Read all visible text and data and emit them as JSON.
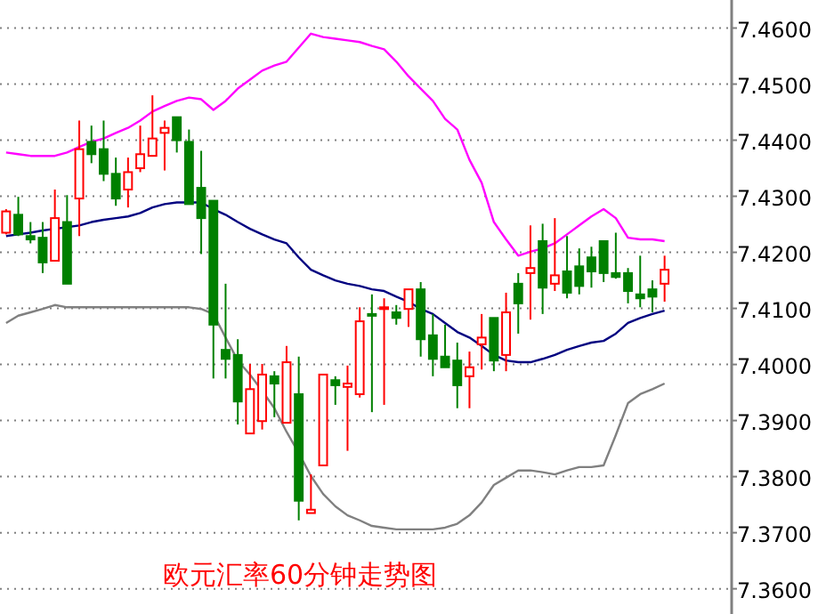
{
  "chart_data": {
    "type": "candlestick",
    "title": "欧元汇率60分钟走势图",
    "categories": [
      null,
      null,
      null,
      null,
      null,
      null,
      null,
      null,
      null,
      null,
      null,
      null,
      null,
      null,
      null,
      null,
      null,
      null,
      null,
      null,
      null,
      null,
      null,
      null,
      null,
      null,
      null,
      null,
      null,
      null,
      null,
      null,
      null,
      null,
      null,
      null,
      null,
      null,
      null,
      null,
      null,
      null,
      null,
      null,
      null,
      null,
      null,
      null,
      null,
      null,
      null,
      null,
      null,
      null,
      null
    ],
    "ohlc": [
      [
        7.4235,
        7.4277,
        7.4232,
        7.4273
      ],
      [
        7.4267,
        7.4299,
        7.4229,
        7.4232
      ],
      [
        7.4229,
        7.4254,
        7.4216,
        7.4223
      ],
      [
        7.4226,
        7.4254,
        7.4163,
        7.4182
      ],
      [
        7.4185,
        7.4312,
        7.4185,
        7.4261
      ],
      [
        7.4254,
        7.4302,
        7.4144,
        7.4144
      ],
      [
        7.4296,
        7.4435,
        7.4229,
        7.4384
      ],
      [
        7.4397,
        7.4426,
        7.4359,
        7.4375
      ],
      [
        7.4384,
        7.4435,
        7.4327,
        7.434
      ],
      [
        7.434,
        7.4369,
        7.4283,
        7.4296
      ],
      [
        7.4312,
        7.4369,
        7.428,
        7.4343
      ],
      [
        7.435,
        7.4426,
        7.4343,
        7.4375
      ],
      [
        7.4372,
        7.448,
        7.4372,
        7.4403
      ],
      [
        7.4413,
        7.4435,
        7.4346,
        7.4422
      ],
      [
        7.4441,
        7.4441,
        7.4378,
        7.44
      ],
      [
        7.4397,
        7.4419,
        7.4286,
        7.4286
      ],
      [
        7.4315,
        7.4381,
        7.4197,
        7.4261
      ],
      [
        7.4292,
        7.4292,
        7.3975,
        7.4071
      ],
      [
        7.4026,
        7.4144,
        7.3975,
        7.401
      ],
      [
        7.4017,
        7.4045,
        7.3893,
        7.3934
      ],
      [
        7.3877,
        7.4001,
        7.3877,
        7.3956
      ],
      [
        7.3899,
        7.4001,
        7.3884,
        7.3982
      ],
      [
        7.3979,
        7.3988,
        7.3906,
        7.3966
      ],
      [
        7.3896,
        7.4033,
        7.3896,
        7.4004
      ],
      [
        7.3947,
        7.4014,
        7.3722,
        7.3757
      ],
      [
        7.3735,
        7.3804,
        7.3735,
        7.3741
      ],
      [
        7.382,
        7.3982,
        7.382,
        7.3982
      ],
      [
        7.3972,
        7.3979,
        7.3928,
        7.3963
      ],
      [
        7.396,
        7.3998,
        7.3846,
        7.3966
      ],
      [
        7.3947,
        7.4102,
        7.3941,
        7.4077
      ],
      [
        7.409,
        7.4125,
        7.3915,
        7.4087
      ],
      [
        7.4099,
        7.4118,
        7.3928,
        7.4102
      ],
      [
        7.4093,
        7.4106,
        7.4071,
        7.4083
      ],
      [
        7.4099,
        7.4134,
        7.4067,
        7.4134
      ],
      [
        7.4134,
        7.4147,
        7.4014,
        7.4045
      ],
      [
        7.4052,
        7.409,
        7.3979,
        7.401
      ],
      [
        7.4014,
        7.4071,
        7.3995,
        7.3995
      ],
      [
        7.4007,
        7.4039,
        7.3922,
        7.3963
      ],
      [
        7.3979,
        7.4023,
        7.3922,
        7.3995
      ],
      [
        7.4036,
        7.409,
        7.3991,
        7.4048
      ],
      [
        7.4083,
        7.4083,
        7.3988,
        7.4007
      ],
      [
        7.4017,
        7.4128,
        7.3988,
        7.4093
      ],
      [
        7.4144,
        7.4163,
        7.4055,
        7.4109
      ],
      [
        7.4163,
        7.4248,
        7.408,
        7.4172
      ],
      [
        7.422,
        7.4251,
        7.409,
        7.4137
      ],
      [
        7.4144,
        7.4261,
        7.4131,
        7.4159
      ],
      [
        7.4166,
        7.4229,
        7.4118,
        7.4128
      ],
      [
        7.4175,
        7.4207,
        7.4125,
        7.414
      ],
      [
        7.4191,
        7.421,
        7.4137,
        7.4166
      ],
      [
        7.422,
        7.422,
        7.4147,
        7.4163
      ],
      [
        7.4163,
        7.4235,
        7.4153,
        7.4156
      ],
      [
        7.4163,
        7.4172,
        7.4109,
        7.4131
      ],
      [
        7.4125,
        7.4194,
        7.4102,
        7.4118
      ],
      [
        7.4134,
        7.415,
        7.4093,
        7.4121
      ],
      [
        7.4144,
        7.4194,
        7.4112,
        7.4169
      ]
    ],
    "colors": [
      "#ff0000",
      "#008000",
      "#008000",
      "#008000",
      "#ff0000",
      "#008000",
      "#ff0000",
      "#008000",
      "#008000",
      "#008000",
      "#ff0000",
      "#ff0000",
      "#ff0000",
      "#ff0000",
      "#008000",
      "#008000",
      "#008000",
      "#008000",
      "#008000",
      "#008000",
      "#ff0000",
      "#ff0000",
      "#008000",
      "#ff0000",
      "#008000",
      "#ff0000",
      "#ff0000",
      "#008000",
      "#ff0000",
      "#ff0000",
      "#008000",
      "#ff0000",
      "#008000",
      "#ff0000",
      "#008000",
      "#008000",
      "#008000",
      "#008000",
      "#ff0000",
      "#ff0000",
      "#008000",
      "#ff0000",
      "#008000",
      "#ff0000",
      "#008000",
      "#ff0000",
      "#008000",
      "#008000",
      "#008000",
      "#008000",
      "#008000",
      "#008000",
      "#008000",
      "#008000",
      "#ff0000"
    ],
    "series": [
      {
        "type": "line",
        "color": "#ff00ff",
        "values": [
          7.4378,
          7.4375,
          7.4372,
          7.4372,
          7.4372,
          7.4378,
          7.4388,
          7.4397,
          7.4403,
          7.4413,
          7.4422,
          7.4435,
          7.4451,
          7.4461,
          7.447,
          7.4476,
          7.4473,
          7.4454,
          7.447,
          7.4492,
          7.4508,
          7.4524,
          7.4533,
          7.454,
          7.4565,
          7.459,
          7.4584,
          7.4581,
          7.4578,
          7.4575,
          7.4568,
          7.4562,
          7.454,
          7.4514,
          7.4492,
          7.447,
          7.4438,
          7.4419,
          7.4365,
          7.4324,
          7.4254,
          7.4223,
          7.4194,
          7.4201,
          7.4207,
          7.4216,
          7.4232,
          7.4248,
          7.4264,
          7.4277,
          7.4261,
          7.4226,
          7.4223,
          7.4223,
          7.422
        ]
      },
      {
        "type": "line",
        "color": "#000080",
        "values": [
          7.4229,
          7.4232,
          7.4235,
          7.4239,
          7.4242,
          7.4245,
          7.4248,
          7.4254,
          7.4258,
          7.4261,
          7.4264,
          7.427,
          7.428,
          7.4286,
          7.4289,
          7.4289,
          7.4289,
          7.4277,
          7.4267,
          7.4254,
          7.4242,
          7.4232,
          7.4223,
          7.4216,
          7.4191,
          7.4169,
          7.4159,
          7.415,
          7.4144,
          7.414,
          7.4134,
          7.4131,
          7.4121,
          7.4112,
          7.4099,
          7.409,
          7.4074,
          7.4058,
          7.4048,
          7.4033,
          7.4017,
          7.4007,
          7.4004,
          7.4004,
          7.401,
          7.4017,
          7.4026,
          7.4033,
          7.4039,
          7.4042,
          7.4055,
          7.4074,
          7.4083,
          7.409,
          7.4096
        ]
      },
      {
        "type": "line",
        "color": "#808080",
        "values": [
          7.4074,
          7.4087,
          7.4093,
          7.4099,
          7.4106,
          7.4102,
          7.4102,
          7.4102,
          7.4102,
          7.4102,
          7.4102,
          7.4102,
          7.4102,
          7.4102,
          7.4102,
          7.4102,
          7.4099,
          7.409,
          7.4048,
          7.4007,
          7.3982,
          7.3953,
          7.3922,
          7.388,
          7.3842,
          7.3801,
          7.3769,
          7.3747,
          7.3731,
          7.3722,
          7.3712,
          7.3709,
          7.3706,
          7.3706,
          7.3706,
          7.3706,
          7.3709,
          7.3716,
          7.3731,
          7.3754,
          7.3785,
          7.3798,
          7.3811,
          7.3811,
          7.3808,
          7.3804,
          7.3811,
          7.3817,
          7.3817,
          7.382,
          7.3874,
          7.3931,
          7.3947,
          7.3956,
          7.3966
        ]
      }
    ],
    "ylim": [
      7.3555,
      7.465
    ],
    "yticks": [
      {
        "value": 7.36,
        "label": "7.3600"
      },
      {
        "value": 7.37,
        "label": "7.3700"
      },
      {
        "value": 7.38,
        "label": "7.3800"
      },
      {
        "value": 7.39,
        "label": "7.3900"
      },
      {
        "value": 7.4,
        "label": "7.4000"
      },
      {
        "value": 7.41,
        "label": "7.4100"
      },
      {
        "value": 7.42,
        "label": "7.4200"
      },
      {
        "value": 7.43,
        "label": "7.4300"
      },
      {
        "value": 7.44,
        "label": "7.4400"
      },
      {
        "value": 7.45,
        "label": "7.4500"
      },
      {
        "value": 7.46,
        "label": "7.4600"
      }
    ],
    "grid": "y",
    "tick_labels": "y",
    "line_style": "solid",
    "marker": "none"
  }
}
